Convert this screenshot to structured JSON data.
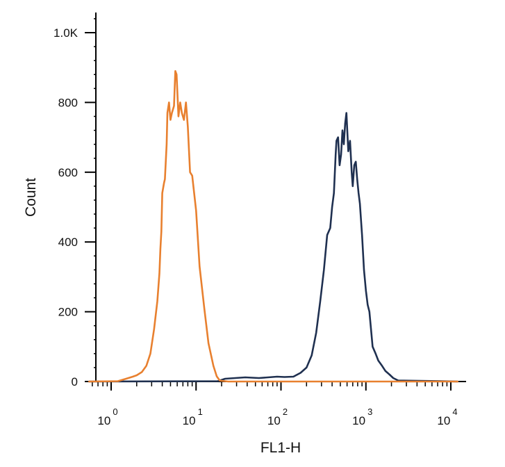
{
  "chart_data": {
    "type": "line",
    "title": "",
    "xlabel": "FL1-H",
    "ylabel": "Count",
    "xscale": "log",
    "xlim": [
      0.55,
      12000
    ],
    "ylim": [
      0,
      1050
    ],
    "grid": false,
    "legend": "none",
    "y_ticks": [
      {
        "value": 0,
        "label": "0"
      },
      {
        "value": 200,
        "label": "200"
      },
      {
        "value": 400,
        "label": "400"
      },
      {
        "value": 600,
        "label": "600"
      },
      {
        "value": 800,
        "label": "800"
      },
      {
        "value": 1000,
        "label": "1.0K"
      }
    ],
    "x_ticks": [
      {
        "value": 1,
        "base": "10",
        "exp": "0"
      },
      {
        "value": 10,
        "base": "10",
        "exp": "1"
      },
      {
        "value": 100,
        "base": "10",
        "exp": "2"
      },
      {
        "value": 1000,
        "base": "10",
        "exp": "3"
      },
      {
        "value": 10000,
        "base": "10",
        "exp": "4"
      }
    ],
    "series": [
      {
        "color": "#e8802f",
        "x": [
          0.55,
          1.2,
          1.5,
          1.8,
          2.0,
          2.3,
          2.6,
          2.9,
          3.2,
          3.5,
          3.7,
          3.8,
          3.9,
          4.0,
          4.2,
          4.3,
          4.5,
          4.6,
          4.8,
          5.0,
          5.2,
          5.5,
          5.7,
          5.9,
          6.2,
          6.5,
          6.8,
          7.2,
          7.6,
          8.0,
          8.5,
          9.0,
          10.0,
          11.0,
          12.5,
          14.0,
          16.0,
          17.5,
          19.0,
          20.0,
          22.0,
          24.0,
          100,
          1000,
          12000
        ],
        "y": [
          0,
          1,
          8,
          14,
          18,
          27,
          45,
          80,
          150,
          230,
          310,
          380,
          430,
          540,
          570,
          580,
          680,
          770,
          800,
          750,
          770,
          790,
          890,
          880,
          760,
          800,
          770,
          750,
          800,
          730,
          600,
          590,
          490,
          330,
          210,
          110,
          45,
          15,
          3,
          2,
          1,
          0,
          0,
          0,
          0
        ]
      },
      {
        "color": "#1f3050",
        "x": [
          0.55,
          18,
          22,
          38,
          55,
          90,
          110,
          140,
          170,
          200,
          230,
          260,
          290,
          320,
          350,
          380,
          400,
          420,
          440,
          450,
          470,
          490,
          510,
          530,
          550,
          570,
          590,
          620,
          650,
          680,
          700,
          730,
          760,
          790,
          820,
          850,
          900,
          950,
          1000,
          1050,
          1100,
          1200,
          1300,
          1400,
          1550,
          1700,
          1900,
          2100,
          2400,
          12000
        ],
        "y": [
          0,
          1,
          8,
          12,
          10,
          14,
          13,
          14,
          25,
          40,
          75,
          140,
          230,
          320,
          420,
          440,
          500,
          540,
          650,
          690,
          700,
          620,
          650,
          720,
          680,
          740,
          770,
          660,
          690,
          600,
          560,
          620,
          630,
          580,
          540,
          510,
          420,
          320,
          260,
          220,
          200,
          100,
          80,
          60,
          45,
          30,
          20,
          10,
          3,
          0
        ]
      }
    ]
  }
}
